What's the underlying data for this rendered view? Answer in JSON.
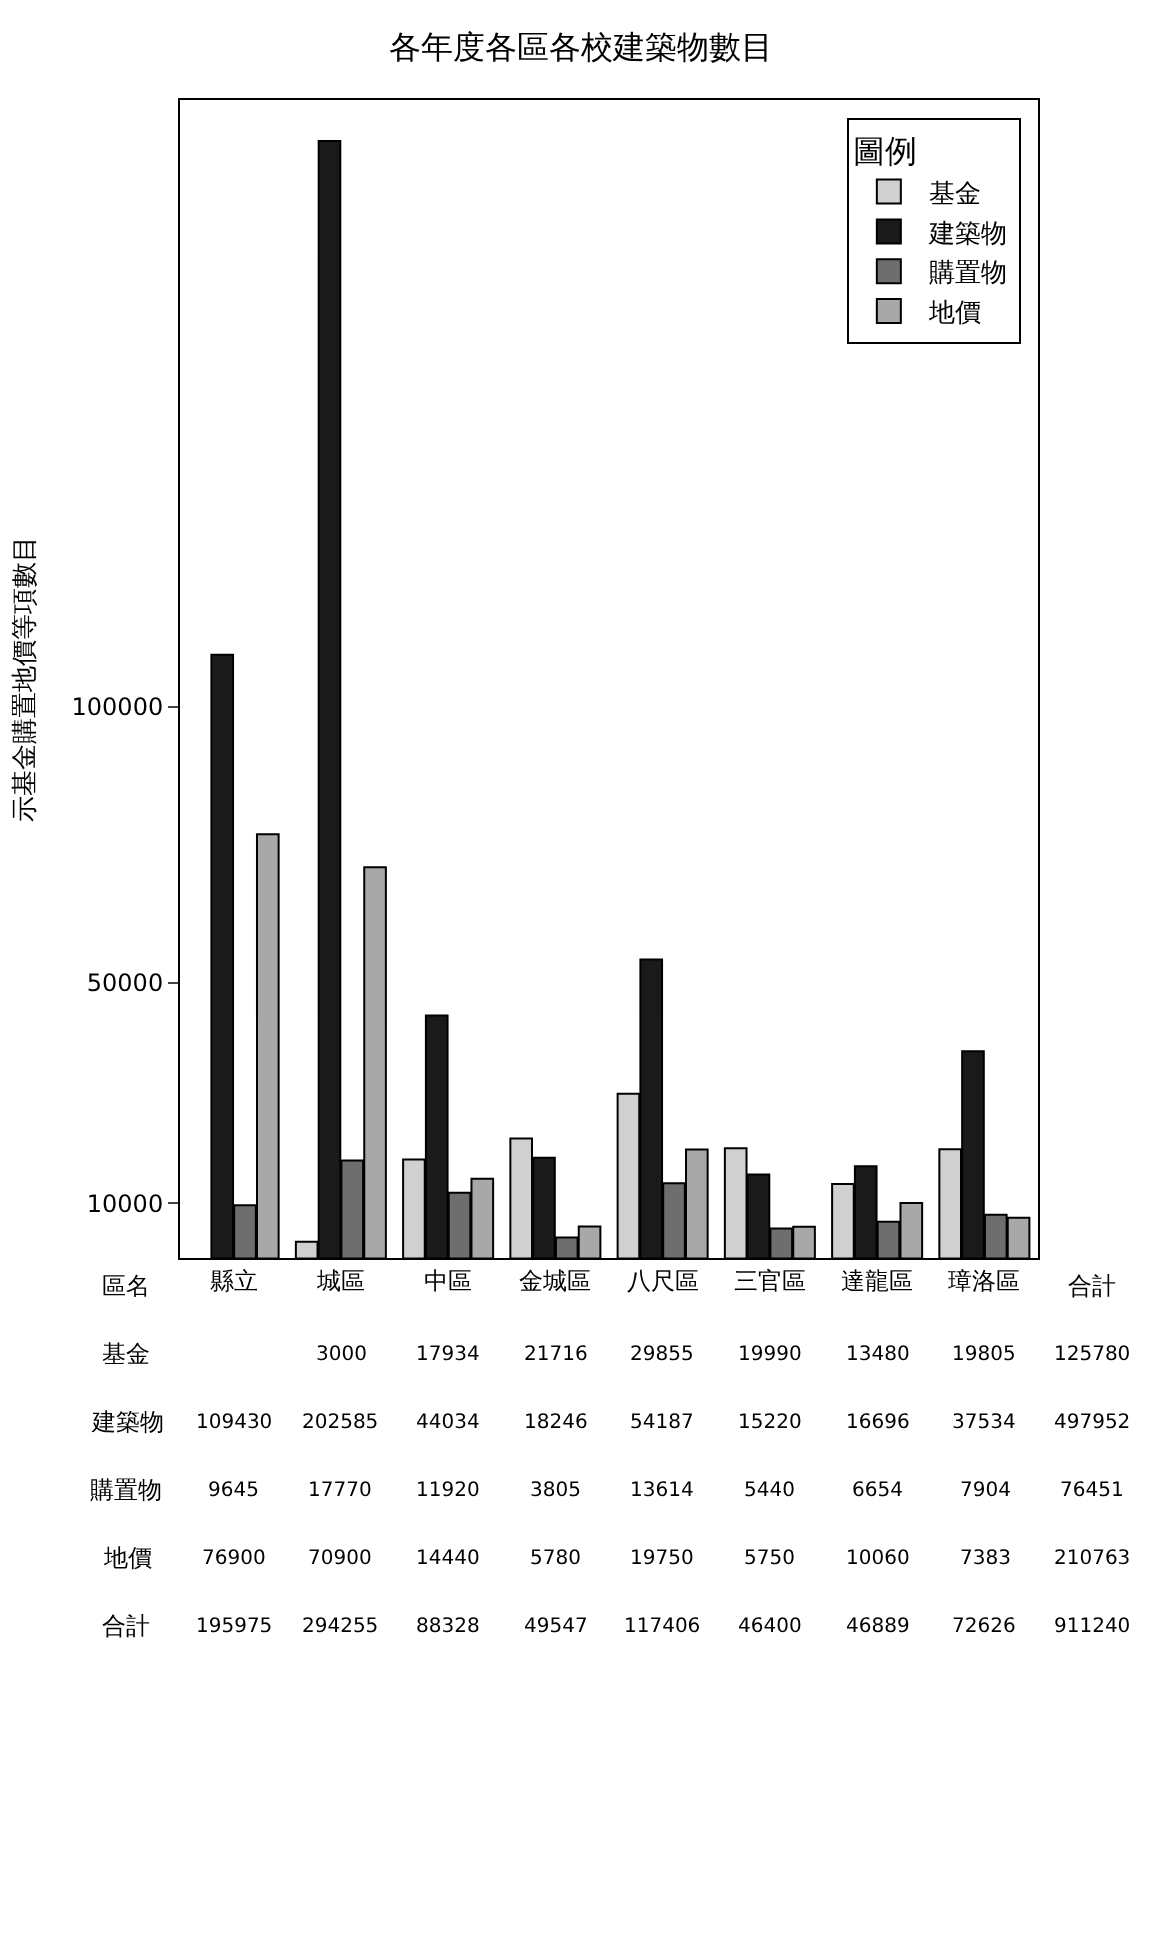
{
  "chart_data": {
    "type": "bar",
    "title": "各年度各區各校建築物數目",
    "ylabel": "示基金購置地價等項數目",
    "legend_title": "圖例",
    "categories": [
      "縣立",
      "城區",
      "中區",
      "金城區",
      "八尺區",
      "三官區",
      "達龍區",
      "璋洛區"
    ],
    "series": [
      {
        "name": "基金",
        "color": "#d0d0d0",
        "values": [
          null,
          3000,
          17934,
          21716,
          29855,
          19990,
          13480,
          19805
        ]
      },
      {
        "name": "建築物",
        "color": "#1a1a1a",
        "values": [
          109430,
          202585,
          44034,
          18246,
          54187,
          15220,
          16696,
          37534
        ]
      },
      {
        "name": "購置物",
        "color": "#6e6e6e",
        "values": [
          9645,
          17770,
          11920,
          3805,
          13614,
          5440,
          6654,
          7904
        ]
      },
      {
        "name": "地價",
        "color": "#a8a8a8",
        "values": [
          76900,
          70900,
          14440,
          5780,
          19750,
          5750,
          10060,
          7383
        ]
      }
    ],
    "annotations": [
      "區名",
      "合計",
      "合計",
      "125780",
      "497952",
      "76451",
      "210763",
      "911240",
      "195975",
      "294255",
      "88328",
      "49547",
      "117406",
      "46400",
      "46889",
      "72626",
      "基金",
      "建築物",
      "購置物",
      "地價"
    ],
    "ylim": [
      0,
      210000
    ],
    "yticks": [
      10000,
      50000,
      {
        "value": 100000,
        "label": "100000"
      }
    ],
    "data_labels": true,
    "legend": "top right",
    "grid": false
  }
}
